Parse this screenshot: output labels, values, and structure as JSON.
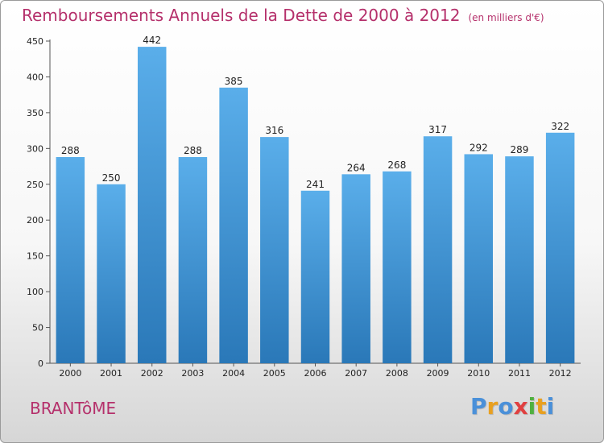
{
  "header": {
    "title": "Remboursements Annuels de la Dette de 2000 à 2012",
    "subtitle": "(en milliers d'€)"
  },
  "footer": {
    "commune": "BRANTôME",
    "logo_letters": [
      "P",
      "r",
      "o",
      "x",
      "i",
      "t",
      "i"
    ]
  },
  "colors": {
    "title": "#b5306b",
    "bar_top": "#5aaeea",
    "bar_bottom": "#2a78b8",
    "logo": [
      "#4a90d9",
      "#e8a020",
      "#4a90d9",
      "#e04040",
      "#50b040",
      "#e8a020",
      "#4a90d9"
    ]
  },
  "chart_data": {
    "type": "bar",
    "title": "Remboursements Annuels de la Dette de 2000 à 2012",
    "subtitle": "(en milliers d'€)",
    "xlabel": "",
    "ylabel": "",
    "categories": [
      "2000",
      "2001",
      "2002",
      "2003",
      "2004",
      "2005",
      "2006",
      "2007",
      "2008",
      "2009",
      "2010",
      "2011",
      "2012"
    ],
    "values": [
      288,
      250,
      442,
      288,
      385,
      316,
      241,
      264,
      268,
      317,
      292,
      289,
      322
    ],
    "value_labels": [
      "288",
      "250",
      "442",
      "288",
      "385",
      "316",
      "241",
      "264",
      "268",
      "317",
      "292",
      "289",
      "322"
    ],
    "ylim": [
      0,
      450
    ],
    "yticks": [
      0,
      50,
      100,
      150,
      200,
      250,
      300,
      350,
      400,
      450
    ],
    "ytick_labels": [
      "0",
      "50",
      "100",
      "150",
      "200",
      "250",
      "300",
      "350",
      "400",
      "450"
    ],
    "grid": false,
    "legend": "none"
  }
}
